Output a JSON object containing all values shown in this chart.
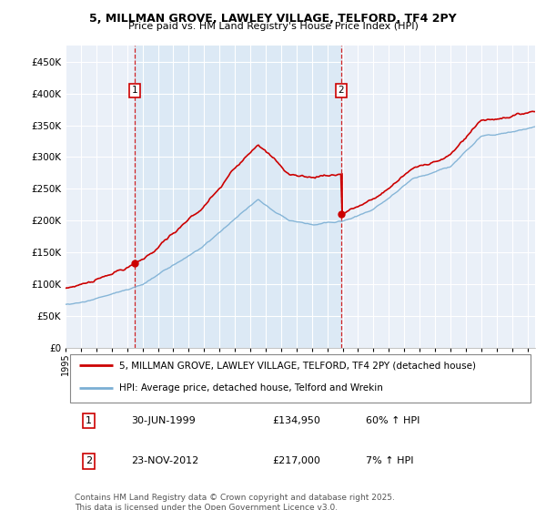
{
  "title1": "5, MILLMAN GROVE, LAWLEY VILLAGE, TELFORD, TF4 2PY",
  "title2": "Price paid vs. HM Land Registry's House Price Index (HPI)",
  "legend_line1": "5, MILLMAN GROVE, LAWLEY VILLAGE, TELFORD, TF4 2PY (detached house)",
  "legend_line2": "HPI: Average price, detached house, Telford and Wrekin",
  "sale1_date": "30-JUN-1999",
  "sale1_price": "£134,950",
  "sale1_hpi": "60% ↑ HPI",
  "sale2_date": "23-NOV-2012",
  "sale2_price": "£217,000",
  "sale2_hpi": "7% ↑ HPI",
  "footer": "Contains HM Land Registry data © Crown copyright and database right 2025.\nThis data is licensed under the Open Government Licence v3.0.",
  "red_color": "#cc0000",
  "blue_color": "#7bafd4",
  "highlight_color": "#dce9f5",
  "vline_color": "#cc0000",
  "background_color": "#eaf0f8",
  "grid_color": "#ffffff",
  "sale1_year": 1999.5,
  "sale2_year": 2012.9,
  "ylim_max": 475000,
  "ylim_min": 0,
  "xmin": 1995,
  "xmax": 2025.5
}
